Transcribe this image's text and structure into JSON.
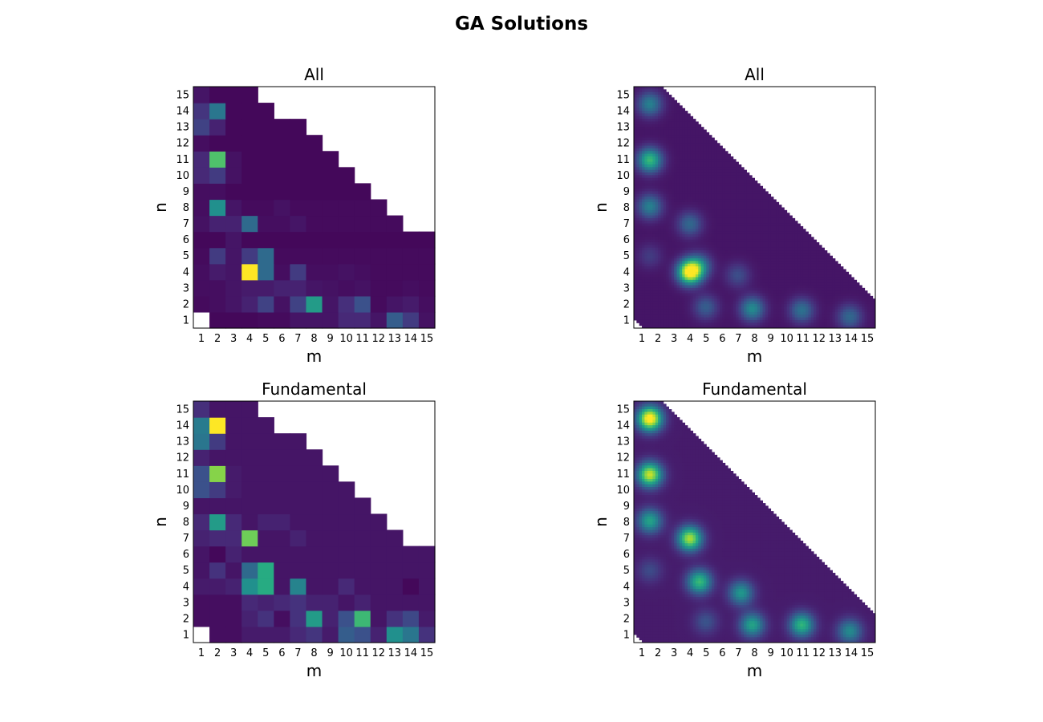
{
  "figure": {
    "title": "GA Solutions"
  },
  "chart_data": [
    {
      "type": "heatmap",
      "title": "All",
      "xlabel": "m",
      "ylabel": "n",
      "rendering": "discrete cells",
      "colormap": "viridis",
      "x_ticks": [
        "1",
        "2",
        "3",
        "4",
        "5",
        "6",
        "7",
        "8",
        "9",
        "10",
        "11",
        "12",
        "13",
        "14",
        "15"
      ],
      "y_ticks": [
        "1",
        "2",
        "3",
        "4",
        "5",
        "6",
        "7",
        "8",
        "9",
        "10",
        "11",
        "12",
        "13",
        "14",
        "15"
      ],
      "values": [
        [
          null,
          0.02,
          0.02,
          0.02,
          0.03,
          0.03,
          0.06,
          0.06,
          0.06,
          0.12,
          0.12,
          0.06,
          0.3,
          0.18,
          0.05
        ],
        [
          0.03,
          0.04,
          0.06,
          0.1,
          0.2,
          0.05,
          0.2,
          0.55,
          0.06,
          0.14,
          0.25,
          0.03,
          0.06,
          0.08,
          0.04
        ],
        [
          0.04,
          0.04,
          0.06,
          0.08,
          0.08,
          0.1,
          0.1,
          0.06,
          0.05,
          0.04,
          0.05,
          0.03,
          0.03,
          0.04,
          0.03
        ],
        [
          0.04,
          0.08,
          0.06,
          1.0,
          0.35,
          0.04,
          0.18,
          0.04,
          0.04,
          0.05,
          0.04,
          0.03,
          0.03,
          0.03,
          0.03
        ],
        [
          0.03,
          0.18,
          0.06,
          0.18,
          0.35,
          0.03,
          0.03,
          0.03,
          0.03,
          0.03,
          0.03,
          0.03,
          0.03,
          0.03,
          0.03
        ],
        [
          0.02,
          0.02,
          0.06,
          0.02,
          0.02,
          0.02,
          0.02,
          0.02,
          0.02,
          0.02,
          0.02,
          0.02,
          0.02,
          0.02,
          0.02
        ],
        [
          0.05,
          0.1,
          0.1,
          0.35,
          0.04,
          0.04,
          0.06,
          0.03,
          0.03,
          0.03,
          0.03,
          0.03,
          0.03,
          null,
          null
        ],
        [
          0.04,
          0.5,
          0.06,
          0.03,
          0.03,
          0.05,
          0.03,
          0.03,
          0.03,
          0.03,
          0.03,
          0.03,
          null,
          null,
          null
        ],
        [
          0.04,
          0.04,
          0.02,
          0.02,
          0.02,
          0.02,
          0.02,
          0.02,
          0.02,
          0.02,
          0.02,
          null,
          null,
          null,
          null
        ],
        [
          0.12,
          0.18,
          0.05,
          0.02,
          0.02,
          0.02,
          0.02,
          0.02,
          0.02,
          0.02,
          null,
          null,
          null,
          null,
          null
        ],
        [
          0.12,
          0.72,
          0.05,
          0.02,
          0.02,
          0.02,
          0.02,
          0.02,
          0.02,
          null,
          null,
          null,
          null,
          null,
          null
        ],
        [
          0.04,
          0.02,
          0.02,
          0.02,
          0.02,
          0.02,
          0.02,
          0.02,
          null,
          null,
          null,
          null,
          null,
          null,
          null
        ],
        [
          0.2,
          0.1,
          0.02,
          0.02,
          0.02,
          0.02,
          0.02,
          null,
          null,
          null,
          null,
          null,
          null,
          null,
          null
        ],
        [
          0.16,
          0.4,
          0.02,
          0.02,
          0.02,
          null,
          null,
          null,
          null,
          null,
          null,
          null,
          null,
          null,
          null
        ],
        [
          0.06,
          0.02,
          0.02,
          0.02,
          null,
          null,
          null,
          null,
          null,
          null,
          null,
          null,
          null,
          null,
          null
        ]
      ]
    },
    {
      "type": "heatmap",
      "title": "All",
      "xlabel": "m",
      "ylabel": "n",
      "rendering": "smooth interpolated",
      "colormap": "viridis",
      "x_ticks": [
        "1",
        "2",
        "3",
        "4",
        "5",
        "6",
        "7",
        "8",
        "9",
        "10",
        "11",
        "12",
        "13",
        "14",
        "15"
      ],
      "y_ticks": [
        "1",
        "2",
        "3",
        "4",
        "5",
        "6",
        "7",
        "8",
        "9",
        "10",
        "11",
        "12",
        "13",
        "14",
        "15"
      ],
      "background_level": 0.06,
      "peaks": [
        {
          "m": 4.0,
          "n": 4.0,
          "level": 1.0
        },
        {
          "m": 4.6,
          "n": 4.4,
          "level": 0.32
        },
        {
          "m": 1.5,
          "n": 11.0,
          "level": 0.62
        },
        {
          "m": 1.5,
          "n": 14.5,
          "level": 0.38
        },
        {
          "m": 1.5,
          "n": 8.1,
          "level": 0.38
        },
        {
          "m": 4.0,
          "n": 7.0,
          "level": 0.28
        },
        {
          "m": 7.9,
          "n": 1.7,
          "level": 0.42
        },
        {
          "m": 11.0,
          "n": 1.6,
          "level": 0.32
        },
        {
          "m": 14.0,
          "n": 1.2,
          "level": 0.28
        },
        {
          "m": 5.0,
          "n": 1.8,
          "level": 0.24
        },
        {
          "m": 7.0,
          "n": 3.8,
          "level": 0.18
        },
        {
          "m": 1.5,
          "n": 5.0,
          "level": 0.12
        }
      ]
    },
    {
      "type": "heatmap",
      "title": "Fundamental",
      "xlabel": "m",
      "ylabel": "n",
      "rendering": "discrete cells",
      "colormap": "viridis",
      "x_ticks": [
        "1",
        "2",
        "3",
        "4",
        "5",
        "6",
        "7",
        "8",
        "9",
        "10",
        "11",
        "12",
        "13",
        "14",
        "15"
      ],
      "y_ticks": [
        "1",
        "2",
        "3",
        "4",
        "5",
        "6",
        "7",
        "8",
        "9",
        "10",
        "11",
        "12",
        "13",
        "14",
        "15"
      ],
      "values": [
        [
          null,
          0.04,
          0.04,
          0.08,
          0.08,
          0.08,
          0.12,
          0.16,
          0.08,
          0.3,
          0.25,
          0.1,
          0.5,
          0.4,
          0.15
        ],
        [
          0.04,
          0.04,
          0.04,
          0.1,
          0.15,
          0.04,
          0.15,
          0.55,
          0.1,
          0.25,
          0.68,
          0.06,
          0.15,
          0.22,
          0.08
        ],
        [
          0.04,
          0.04,
          0.04,
          0.12,
          0.1,
          0.12,
          0.15,
          0.1,
          0.1,
          0.06,
          0.1,
          0.06,
          0.06,
          0.06,
          0.06
        ],
        [
          0.08,
          0.08,
          0.1,
          0.5,
          0.62,
          0.06,
          0.45,
          0.06,
          0.06,
          0.12,
          0.06,
          0.06,
          0.06,
          0.02,
          0.06
        ],
        [
          0.06,
          0.15,
          0.06,
          0.35,
          0.62,
          0.06,
          0.06,
          0.06,
          0.06,
          0.06,
          0.06,
          0.06,
          0.06,
          0.06,
          0.06
        ],
        [
          0.06,
          0.02,
          0.1,
          0.06,
          0.06,
          0.06,
          0.06,
          0.06,
          0.06,
          0.06,
          0.06,
          0.06,
          0.06,
          0.06,
          0.06
        ],
        [
          0.1,
          0.12,
          0.12,
          0.78,
          0.06,
          0.06,
          0.1,
          0.06,
          0.06,
          0.06,
          0.06,
          0.06,
          0.06,
          null,
          null
        ],
        [
          0.12,
          0.55,
          0.12,
          0.06,
          0.1,
          0.1,
          0.06,
          0.06,
          0.06,
          0.06,
          0.06,
          0.06,
          null,
          null,
          null
        ],
        [
          0.06,
          0.06,
          0.06,
          0.06,
          0.06,
          0.06,
          0.06,
          0.06,
          0.06,
          0.06,
          0.06,
          null,
          null,
          null,
          null
        ],
        [
          0.25,
          0.18,
          0.08,
          0.06,
          0.06,
          0.06,
          0.06,
          0.06,
          0.06,
          0.06,
          null,
          null,
          null,
          null,
          null
        ],
        [
          0.25,
          0.82,
          0.08,
          0.06,
          0.06,
          0.06,
          0.06,
          0.06,
          0.06,
          null,
          null,
          null,
          null,
          null,
          null
        ],
        [
          0.1,
          0.06,
          0.06,
          0.06,
          0.06,
          0.06,
          0.06,
          0.06,
          null,
          null,
          null,
          null,
          null,
          null,
          null
        ],
        [
          0.4,
          0.18,
          0.06,
          0.06,
          0.06,
          0.06,
          0.06,
          null,
          null,
          null,
          null,
          null,
          null,
          null,
          null
        ],
        [
          0.42,
          1.0,
          0.06,
          0.06,
          0.06,
          null,
          null,
          null,
          null,
          null,
          null,
          null,
          null,
          null,
          null
        ],
        [
          0.14,
          0.06,
          0.06,
          0.06,
          null,
          null,
          null,
          null,
          null,
          null,
          null,
          null,
          null,
          null,
          null
        ]
      ]
    },
    {
      "type": "heatmap",
      "title": "Fundamental",
      "xlabel": "m",
      "ylabel": "n",
      "rendering": "smooth interpolated",
      "colormap": "viridis",
      "x_ticks": [
        "1",
        "2",
        "3",
        "4",
        "5",
        "6",
        "7",
        "8",
        "9",
        "10",
        "11",
        "12",
        "13",
        "14",
        "15"
      ],
      "y_ticks": [
        "1",
        "2",
        "3",
        "4",
        "5",
        "6",
        "7",
        "8",
        "9",
        "10",
        "11",
        "12",
        "13",
        "14",
        "15"
      ],
      "background_level": 0.08,
      "peaks": [
        {
          "m": 1.5,
          "n": 14.5,
          "level": 1.0
        },
        {
          "m": 1.5,
          "n": 11.0,
          "level": 0.85
        },
        {
          "m": 1.5,
          "n": 8.1,
          "level": 0.5
        },
        {
          "m": 4.0,
          "n": 7.0,
          "level": 0.8
        },
        {
          "m": 4.6,
          "n": 4.3,
          "level": 0.6
        },
        {
          "m": 7.2,
          "n": 3.6,
          "level": 0.45
        },
        {
          "m": 7.9,
          "n": 1.6,
          "level": 0.5
        },
        {
          "m": 11.0,
          "n": 1.6,
          "level": 0.58
        },
        {
          "m": 14.0,
          "n": 1.2,
          "level": 0.4
        },
        {
          "m": 5.0,
          "n": 1.8,
          "level": 0.18
        },
        {
          "m": 1.5,
          "n": 5.0,
          "level": 0.15
        }
      ]
    }
  ]
}
